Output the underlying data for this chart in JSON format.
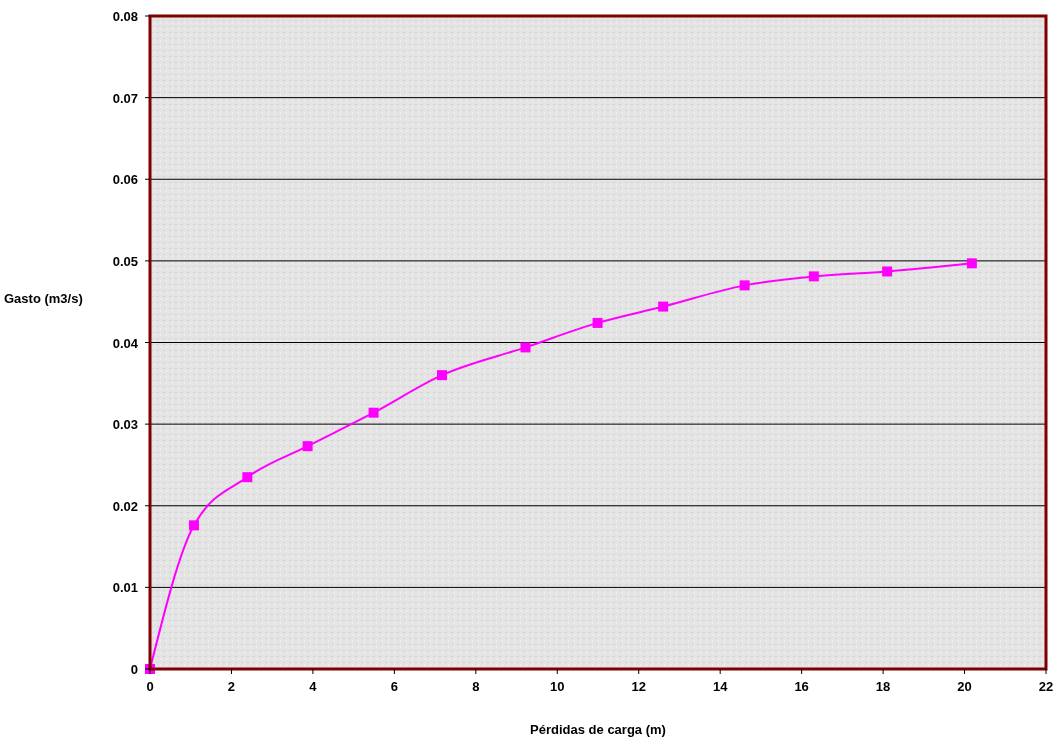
{
  "chart_data": {
    "type": "line",
    "xlabel": "Pérdidas de carga (m)",
    "ylabel": "Gasto (m3/s)",
    "x": [
      0,
      1.08,
      2.39,
      3.87,
      5.49,
      7.17,
      9.22,
      10.99,
      12.6,
      14.6,
      16.3,
      18.1,
      20.18
    ],
    "series": [
      {
        "color": "#ff00ff",
        "values": [
          0,
          0.0176,
          0.0235,
          0.0273,
          0.0314,
          0.036,
          0.0394,
          0.0424,
          0.0444,
          0.047,
          0.0481,
          0.0487,
          0.0497
        ]
      }
    ],
    "xlim": [
      0,
      22
    ],
    "xticks": [
      0,
      2,
      4,
      6,
      8,
      10,
      12,
      14,
      16,
      18,
      20,
      22
    ],
    "ylim": [
      0,
      0.08
    ],
    "yticks": [
      0,
      0.01,
      0.02,
      0.03,
      0.04,
      0.05,
      0.06,
      0.07,
      0.08
    ],
    "grid": "y",
    "marker": "square",
    "line_style": "solid"
  }
}
